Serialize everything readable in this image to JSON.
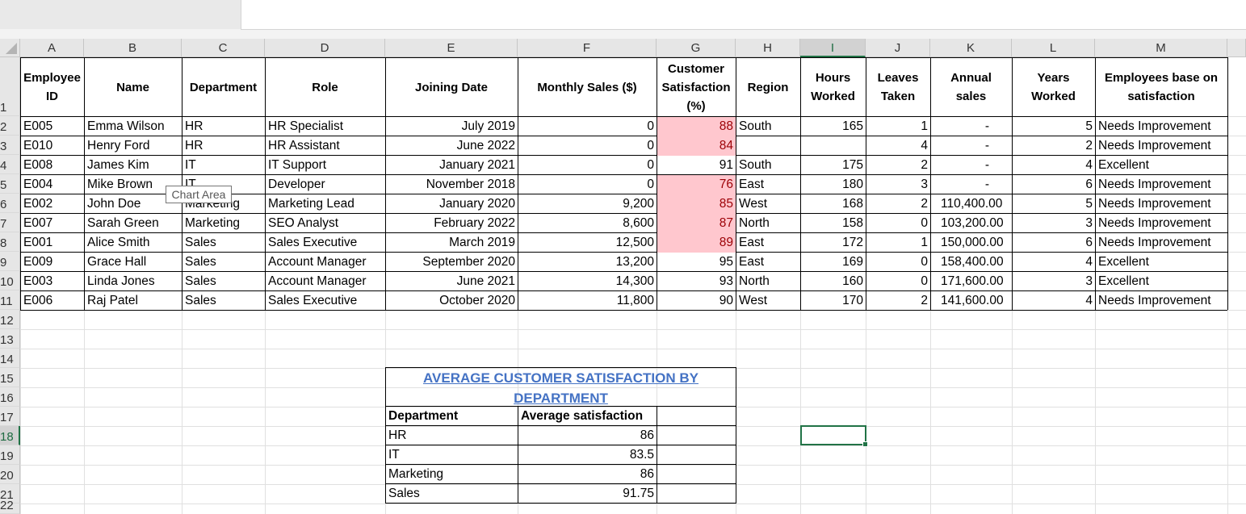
{
  "columns": [
    "A",
    "B",
    "C",
    "D",
    "E",
    "F",
    "G",
    "H",
    "I",
    "J",
    "K",
    "L",
    "M"
  ],
  "rows": [
    "1",
    "2",
    "3",
    "4",
    "5",
    "6",
    "7",
    "8",
    "9",
    "10",
    "11",
    "12",
    "13",
    "14",
    "15",
    "16",
    "17",
    "18",
    "19",
    "20",
    "21",
    "22"
  ],
  "headers": {
    "employee_id": "Employee ID",
    "name": "Name",
    "department": "Department",
    "role": "Role",
    "joining_date": "Joining Date",
    "monthly_sales": "Monthly Sales ($)",
    "customer_satisfaction": "Customer Satisfaction (%)",
    "region": "Region",
    "hours_worked": "Hours Worked",
    "leaves_taken": "Leaves Taken",
    "annual_sales": "Annual sales",
    "years_worked": "Years Worked",
    "satisfaction_base": "Employees base on satisfaction"
  },
  "employees": [
    {
      "id": "E005",
      "name": "Emma Wilson",
      "department": "HR",
      "role": "HR Specialist",
      "joining": "July 2019",
      "monthly_sales": "0",
      "satisfaction": "88",
      "region": "South",
      "hours": "165",
      "leaves": "1",
      "annual": "-",
      "years": "5",
      "status": "Needs Improvement"
    },
    {
      "id": "E010",
      "name": "Henry Ford",
      "department": "HR",
      "role": "HR Assistant",
      "joining": "June 2022",
      "monthly_sales": "0",
      "satisfaction": "84",
      "region": "",
      "hours": "",
      "leaves": "4",
      "annual": "-",
      "years": "2",
      "status": "Needs Improvement"
    },
    {
      "id": "E008",
      "name": "James Kim",
      "department": "IT",
      "role": "IT Support",
      "joining": "January 2021",
      "monthly_sales": "0",
      "satisfaction": "91",
      "region": "South",
      "hours": "175",
      "leaves": "2",
      "annual": "-",
      "years": "4",
      "status": "Excellent"
    },
    {
      "id": "E004",
      "name": "Mike Brown",
      "department": "IT",
      "role": "Developer",
      "joining": "November 2018",
      "monthly_sales": "0",
      "satisfaction": "76",
      "region": "East",
      "hours": "180",
      "leaves": "3",
      "annual": "-",
      "years": "6",
      "status": "Needs Improvement"
    },
    {
      "id": "E002",
      "name": "John Doe",
      "department": "Marketing",
      "role": "Marketing Lead",
      "joining": "January 2020",
      "monthly_sales": "9,200",
      "satisfaction": "85",
      "region": "West",
      "hours": "168",
      "leaves": "2",
      "annual": "110,400.00",
      "years": "5",
      "status": "Needs Improvement"
    },
    {
      "id": "E007",
      "name": "Sarah Green",
      "department": "Marketing",
      "role": "SEO Analyst",
      "joining": "February 2022",
      "monthly_sales": "8,600",
      "satisfaction": "87",
      "region": "North",
      "hours": "158",
      "leaves": "0",
      "annual": "103,200.00",
      "years": "3",
      "status": "Needs Improvement"
    },
    {
      "id": "E001",
      "name": "Alice Smith",
      "department": "Sales",
      "role": "Sales Executive",
      "joining": "March 2019",
      "monthly_sales": "12,500",
      "satisfaction": "89",
      "region": "East",
      "hours": "172",
      "leaves": "1",
      "annual": "150,000.00",
      "years": "6",
      "status": "Needs Improvement"
    },
    {
      "id": "E009",
      "name": "Grace Hall",
      "department": "Sales",
      "role": "Account Manager",
      "joining": "September 2020",
      "monthly_sales": "13,200",
      "satisfaction": "95",
      "region": "East",
      "hours": "169",
      "leaves": "0",
      "annual": "158,400.00",
      "years": "4",
      "status": "Excellent"
    },
    {
      "id": "E003",
      "name": "Linda Jones",
      "department": "Sales",
      "role": "Account Manager",
      "joining": "June 2021",
      "monthly_sales": "14,300",
      "satisfaction": "93",
      "region": "North",
      "hours": "160",
      "leaves": "0",
      "annual": "171,600.00",
      "years": "3",
      "status": "Excellent"
    },
    {
      "id": "E006",
      "name": "Raj Patel",
      "department": "Sales",
      "role": "Sales Executive",
      "joining": "October 2020",
      "monthly_sales": "11,800",
      "satisfaction": "90",
      "region": "West",
      "hours": "170",
      "leaves": "2",
      "annual": "141,600.00",
      "years": "4",
      "status": "Needs Improvement"
    }
  ],
  "highlighted_rows": [
    true,
    true,
    false,
    true,
    true,
    true,
    true,
    false,
    false,
    false
  ],
  "tooltip": "Chart Area",
  "summary": {
    "title": "AVERAGE CUSTOMER SATISFACTION BY DEPARTMENT",
    "col1": "Department",
    "col2": "Average satisfaction",
    "rows": [
      {
        "department": "HR",
        "avg": "86"
      },
      {
        "department": "IT",
        "avg": "83.5"
      },
      {
        "department": "Marketing",
        "avg": "86"
      },
      {
        "department": "Sales",
        "avg": "91.75"
      }
    ]
  },
  "colors": {
    "highlight_fill": "#ffc7ce",
    "highlight_text": "#9c0006",
    "title_blue": "#4472c4",
    "selection_green": "#217346"
  },
  "selected_cell": "I18"
}
